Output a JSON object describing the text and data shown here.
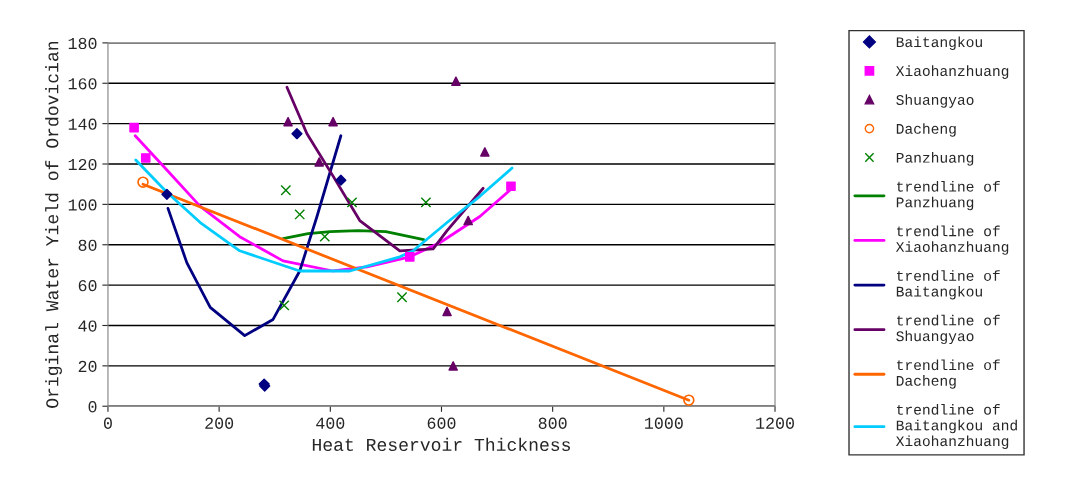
{
  "chart_data": {
    "type": "scatter",
    "xlabel": "Heat Reservoir Thickness",
    "ylabel": "Original Water Yield of Ordovician",
    "xlim": [
      0,
      1200
    ],
    "xticks": [
      0,
      200,
      400,
      600,
      800,
      1000,
      1200
    ],
    "ylim": [
      0,
      180
    ],
    "yticks": [
      0,
      20,
      40,
      60,
      80,
      100,
      120,
      140,
      160,
      180
    ],
    "grid": "y",
    "legend": "right",
    "series": [
      {
        "name": "Baitangkou",
        "marker": "diamond",
        "color": "#000080",
        "x": [
          106,
          340,
          419,
          281,
          282
        ],
        "values": [
          105,
          135,
          112,
          11,
          10
        ]
      },
      {
        "name": "Xiaohanzhuang",
        "marker": "square",
        "color": "#ff00ff",
        "x": [
          47,
          68,
          543,
          725
        ],
        "values": [
          138,
          123,
          74,
          109
        ]
      },
      {
        "name": "Shuangyao",
        "marker": "triangle",
        "color": "#660066",
        "x": [
          324,
          405,
          380,
          626,
          678,
          648,
          610,
          621
        ],
        "values": [
          141,
          141,
          121,
          161,
          126,
          92,
          47,
          20
        ]
      },
      {
        "name": "Dacheng",
        "marker": "circle",
        "color": "#ff6600",
        "x": [
          63,
          1045
        ],
        "values": [
          111,
          3
        ]
      },
      {
        "name": "Panzhuang",
        "marker": "cross",
        "color": "#008000",
        "x": [
          320,
          345,
          390,
          439,
          572,
          529,
          317
        ],
        "values": [
          107,
          95,
          84,
          101,
          101,
          54,
          50
        ]
      },
      {
        "name": "trendline of Panzhuang",
        "type": "line",
        "color": "#008000",
        "x": [
          315,
          360,
          400,
          450,
          500,
          568
        ],
        "values": [
          83,
          85.5,
          86.5,
          87,
          86.5,
          82.5
        ]
      },
      {
        "name": "trendline of Xiaohanzhuang",
        "type": "line",
        "color": "#ff00ff",
        "x": [
          49,
          106,
          166,
          237,
          315,
          405,
          466,
          543,
          597,
          669,
          727
        ],
        "values": [
          134,
          117,
          99,
          84,
          72,
          67,
          69,
          74,
          81,
          94,
          108
        ]
      },
      {
        "name": "trendline of Baitangkou",
        "type": "line",
        "color": "#000080",
        "x": [
          108,
          142,
          184,
          246,
          297,
          345,
          376,
          419
        ],
        "values": [
          98,
          71,
          49,
          35,
          43,
          67,
          94,
          134
        ]
      },
      {
        "name": "trendline of Shuangyao",
        "type": "line",
        "color": "#660066",
        "x": [
          322,
          358,
          405,
          453,
          525,
          585,
          610,
          675
        ],
        "values": [
          158,
          135,
          114,
          92,
          77,
          78,
          87,
          108
        ]
      },
      {
        "name": "trendline of Dacheng",
        "type": "line",
        "color": "#ff6600",
        "x": [
          63,
          1045
        ],
        "values": [
          110,
          3
        ]
      },
      {
        "name": "trendline of Baitangkou and Xiaohanzhuang",
        "type": "line",
        "color": "#00ccff",
        "x": [
          50,
          106,
          166,
          237,
          345,
          435,
          525,
          549,
          610,
          669,
          727
        ],
        "values": [
          122,
          106,
          91,
          77,
          67,
          67,
          74,
          77,
          91,
          104,
          118
        ]
      }
    ]
  }
}
